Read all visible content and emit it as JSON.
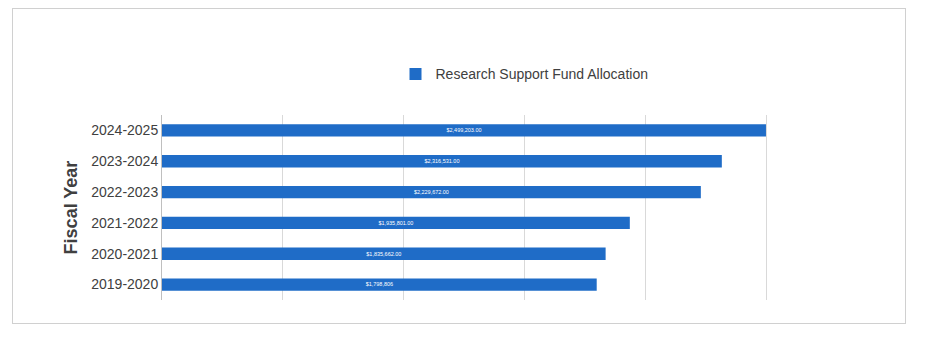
{
  "chart_data": {
    "type": "bar",
    "orientation": "horizontal",
    "y_label": "Fiscal Year",
    "categories": [
      "2019-2020",
      "2020-2021",
      "2021-2022",
      "2022-2023",
      "2023-2024",
      "2024-2025"
    ],
    "series": [
      {
        "name": "Research Support Fund Allocation",
        "color": "#1f6cc7",
        "values": [
          1798806,
          1835662,
          1935801,
          2229672,
          2316531,
          2499203
        ],
        "value_labels": [
          "$1,798,806",
          "$1,835,662.00",
          "$1,935,801.00",
          "$2,229,672.00",
          "$2,316,531.00",
          "$2,499,203.00"
        ]
      }
    ],
    "xlim": [
      0,
      3000000
    ],
    "xticks": [
      0,
      500000,
      1000000,
      1500000,
      2000000,
      2500000,
      3000000
    ],
    "grid": true,
    "legend": "top",
    "data_labels": true,
    "tick_labels": "y"
  }
}
